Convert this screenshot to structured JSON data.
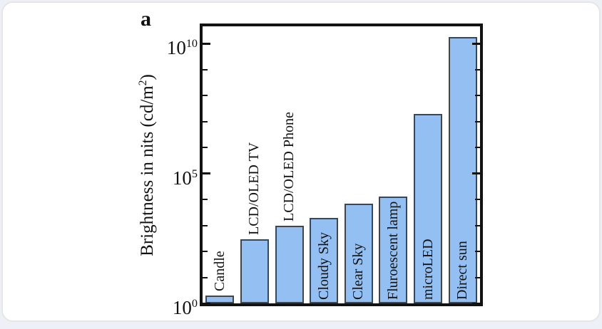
{
  "panel_label": "a",
  "colors": {
    "page_bg": "#edf1f7",
    "card_bg": "#ffffff",
    "card_border": "#e6e6e6",
    "axis": "#121212",
    "bar_fill": "#94bff2",
    "bar_edge": "#3d4754",
    "text": "#111111"
  },
  "chart_data": {
    "type": "bar",
    "title": "",
    "yscale": "log",
    "ylabel_prefix": "Brightness in nits (cd/m",
    "ylabel_sup": "2",
    "ylabel_suffix": ")",
    "ylim_log10": [
      0,
      10.66
    ],
    "grid": false,
    "legend": "none",
    "categories": [
      "Candle",
      "LCD/OLED TV",
      "LCD/OLED Phone",
      "Cloudy Sky",
      "Clear Sky",
      "Fluroescent lamp",
      "microLED",
      "Direct sun"
    ],
    "values": [
      2,
      300,
      1000,
      2000,
      7000,
      13000,
      20000000,
      18000000000
    ],
    "label_inside_bar": [
      false,
      false,
      false,
      true,
      true,
      true,
      true,
      true
    ],
    "y_ticks": [
      {
        "base": "10",
        "exp": "0",
        "log10": 0
      },
      {
        "base": "10",
        "exp": "5",
        "log10": 5
      },
      {
        "base": "10",
        "exp": "10",
        "log10": 10
      }
    ],
    "minor_tick_log10": [
      1,
      2,
      3,
      4,
      6,
      7,
      8,
      9
    ]
  }
}
